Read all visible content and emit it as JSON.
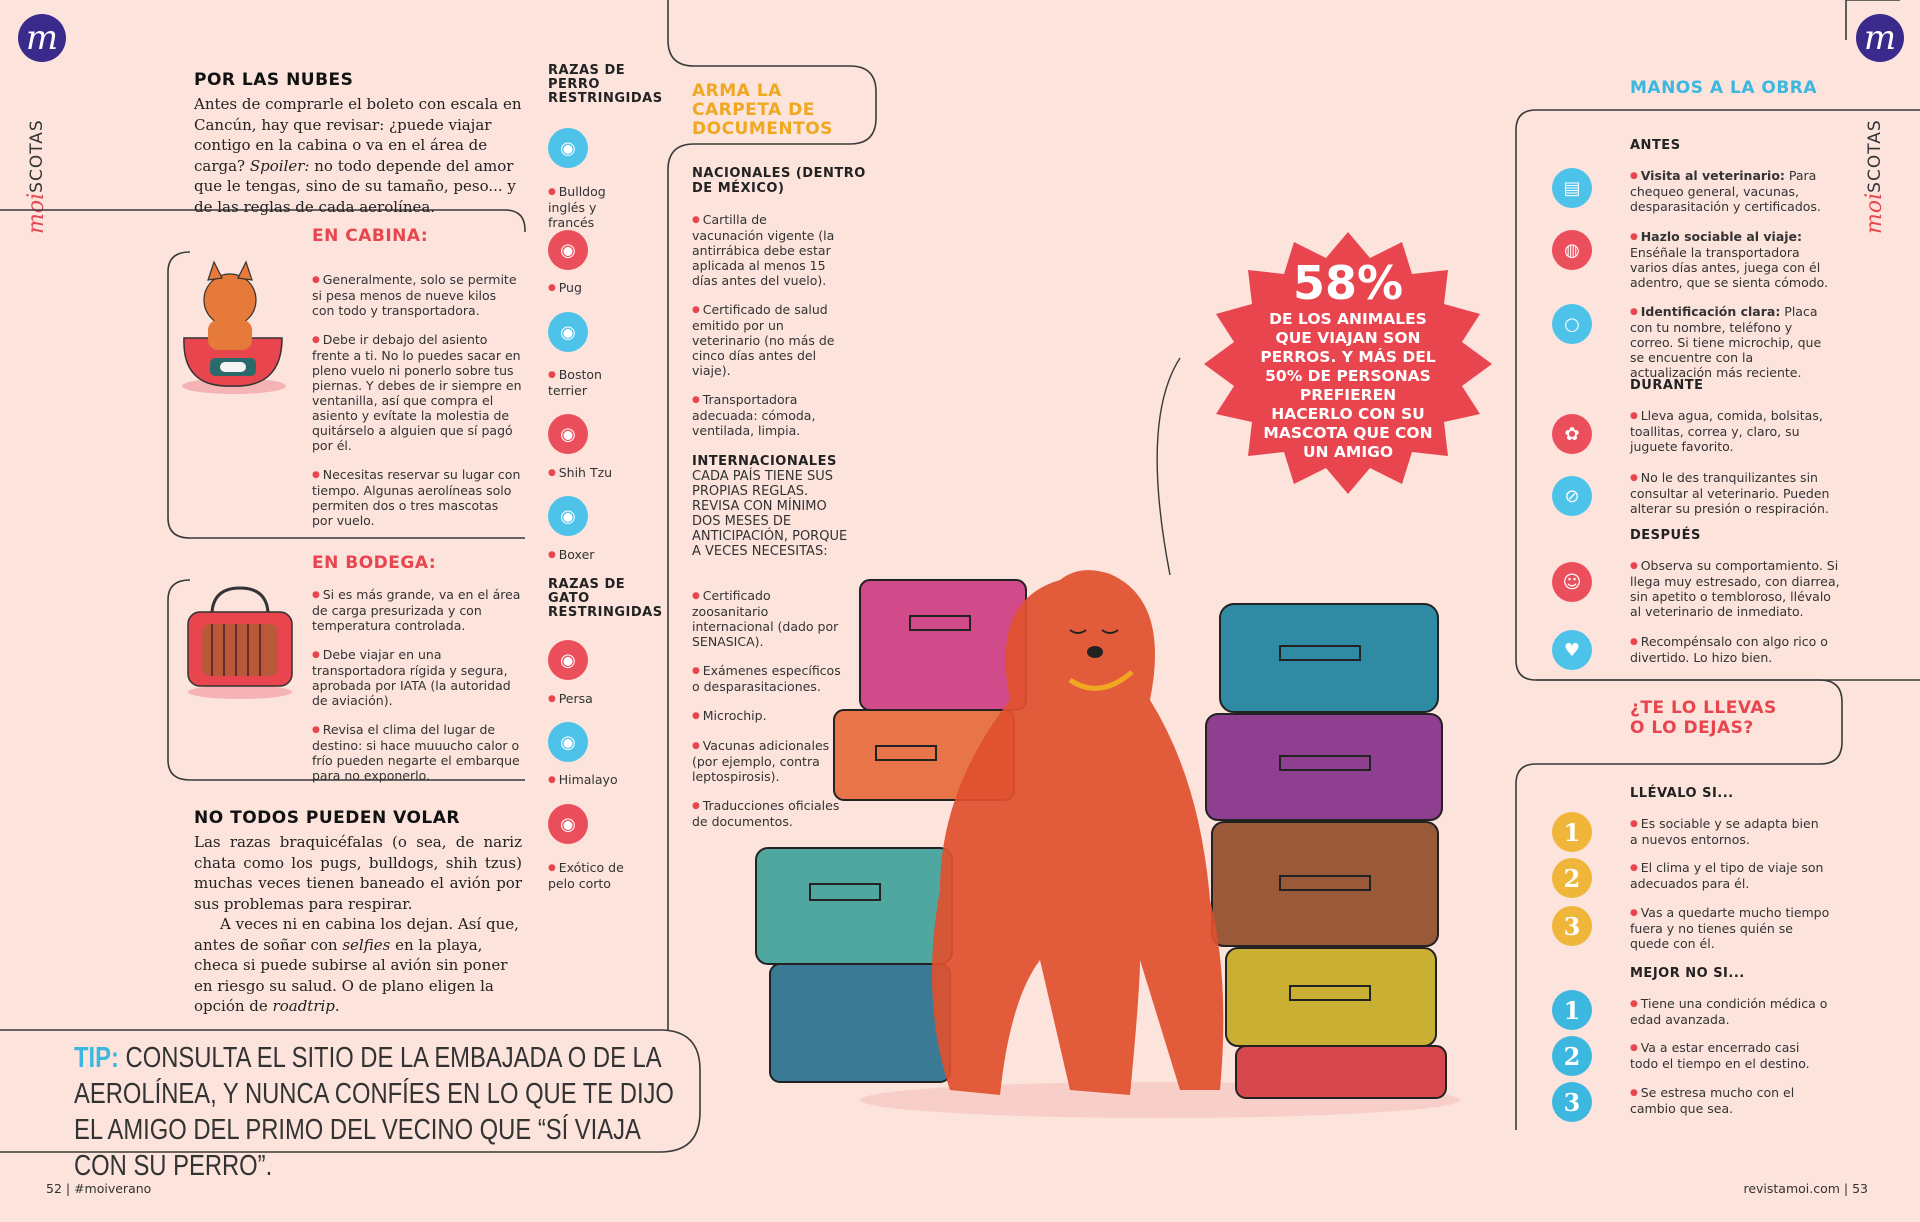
{
  "brand": {
    "logo_letter": "m",
    "side_moi": "moi",
    "side_scotas": "SCOTAS"
  },
  "left": {
    "title": "POR LAS NUBES",
    "intro_a": "Antes de comprarle el boleto con escala en Cancún, hay que revisar: ¿puede viajar contigo en la cabina o va en el área de carga? ",
    "intro_em": "Spoiler:",
    "intro_b": " no todo depende del amor que le tengas, sino de su tamaño, peso... y de las reglas de cada aerolínea.",
    "cabina_title": "EN CABINA:",
    "cabina": [
      "Generalmente, solo se permite si pesa menos de nueve kilos con todo y transportadora.",
      "Debe ir debajo del asiento frente a ti. No lo puedes sacar en pleno vuelo ni ponerlo sobre tus piernas. Y debes de ir siempre en ventanilla, así que compra el asiento y evítate la molestia de quitárselo a alguien que sí pagó por él.",
      "Necesitas reservar su lugar con tiempo. Algunas aerolíneas solo permiten dos o tres mascotas por vuelo."
    ],
    "bodega_title": "EN BODEGA:",
    "bodega": [
      "Si es más grande, va en el área de carga presurizada y con temperatura controlada.",
      "Debe viajar en una transportadora rígida y segura, aprobada por IATA (la autoridad de aviación).",
      "Revisa el clima del lugar de destino: si hace muuucho calor o frío pueden negarte el embarque para no exponerlo."
    ],
    "volar_title": "NO TODOS PUEDEN VOLAR",
    "volar_p1": "Las razas braquicéfalas (o sea, de nariz chata como los pugs, bulldogs, shih tzus) muchas veces tienen baneado el avión por sus problemas para respirar.",
    "volar_p2a": "A veces ni en cabina los dejan. Así que, antes de soñar con ",
    "volar_p2em": "selfies",
    "volar_p2b": " en la playa, checa si puede subirse al avión sin poner en riesgo su salud. O de plano eligen la opción de ",
    "volar_p2em2": "roadtrip",
    "volar_p2c": "."
  },
  "breeds": {
    "dog_title": "RAZAS DE PERRO RESTRINGIDAS",
    "dogs": [
      "Bulldog inglés y francés",
      "Pug",
      "Boston terrier",
      "Shih Tzu",
      "Boxer"
    ],
    "cat_title": "RAZAS DE GATO RESTRINGIDAS",
    "cats": [
      "Persa",
      "Himalayo",
      "Exótico de pelo corto"
    ]
  },
  "docs": {
    "title": "ARMA LA CARPETA DE DOCUMENTOS",
    "nac_title": "NACIONALES (DENTRO DE MÉXICO)",
    "nac": [
      "Cartilla de vacunación vigente (la antirrábica debe estar aplicada al menos 15 días antes del vuelo).",
      "Certificado de salud emitido por un veterinario (no más de cinco días antes del viaje).",
      "Transportadora adecuada: cómoda, ventilada, limpia."
    ],
    "int_title": "INTERNACIONALES",
    "int_sub": "CADA PAÍS TIENE SUS PROPIAS REGLAS. REVISA CON MÍNIMO DOS MESES DE ANTICIPACIÓN, PORQUE A VECES NECESITAS:",
    "int": [
      "Certificado zoosanitario internacional (dado por SENASICA).",
      "Exámenes específicos o desparasitaciones.",
      "Microchip.",
      "Vacunas adicionales (por ejemplo, contra leptospirosis).",
      "Traducciones oficiales de documentos."
    ]
  },
  "stat": {
    "number": "58%",
    "text": "DE LOS ANIMALES QUE VIAJAN SON PERROS. Y MÁS DEL 50% DE PERSONAS PREFIEREN HACERLO CON SU MASCOTA QUE CON UN AMIGO"
  },
  "tip": {
    "label": "TIP:",
    "text": " CONSULTA EL SITIO DE LA EMBAJADA O DE LA AEROLÍNEA, Y NUNCA CONFÍES EN LO QUE TE DIJO EL AMIGO DEL PRIMO DEL VECINO QUE “SÍ VIAJA CON SU PERRO”."
  },
  "right": {
    "title": "MANOS A LA OBRA",
    "antes_title": "ANTES",
    "antes": [
      {
        "b": "Visita al veterinario:",
        "t": " Para chequeo general, vacunas, desparasitación y certificados."
      },
      {
        "b": "Hazlo sociable al viaje:",
        "t": " Enséñale la transportadora varios días antes, juega con él adentro, que se sienta cómodo."
      },
      {
        "b": "Identificación clara:",
        "t": " Placa con tu nombre, teléfono y correo. Si tiene microchip, que se encuentre con la actualización más reciente."
      }
    ],
    "durante_title": "DURANTE",
    "durante": [
      "Lleva agua, comida, bolsitas, toallitas, correa y, claro, su juguete favorito.",
      "No le des tranquilizantes sin consultar al veterinario. Pueden alterar su presión o respiración."
    ],
    "despues_title": "DESPUÉS",
    "despues": [
      "Observa su comportamiento. Si llega muy estresado, con diarrea, sin apetito o tembloroso, llévalo al veterinario de inmediato.",
      "Recompénsalo con algo rico o divertido. Lo hizo bien."
    ],
    "llevas_title_1": "¿TE LO LLEVAS",
    "llevas_title_2": "O LO DEJAS?",
    "llevalo_title": "LLÉVALO SI...",
    "llevalo": [
      {
        "n": "1",
        "t": "Es sociable y se adapta bien a nuevos entornos."
      },
      {
        "n": "2",
        "t": "El clima y el tipo de viaje son adecuados para él."
      },
      {
        "n": "3",
        "t": "Vas a quedarte mucho tiempo fuera y no tienes quién se quede con él."
      }
    ],
    "mejor_title": "MEJOR NO SI...",
    "mejor": [
      {
        "n": "1",
        "t": "Tiene una condición médica o edad avanzada."
      },
      {
        "n": "2",
        "t": "Va a estar encerrado casi todo el tiempo en el destino."
      },
      {
        "n": "3",
        "t": "Se estresa mucho con el cambio que sea."
      }
    ]
  },
  "footer": {
    "left_page": "52",
    "left_tag": "#moiverano",
    "right_site": "revistamoi.com",
    "right_page": "53"
  },
  "colors": {
    "pink": "#e8454f",
    "cyan": "#3bb7e0",
    "yellow": "#f0a820",
    "bg": "#fce3dc"
  }
}
